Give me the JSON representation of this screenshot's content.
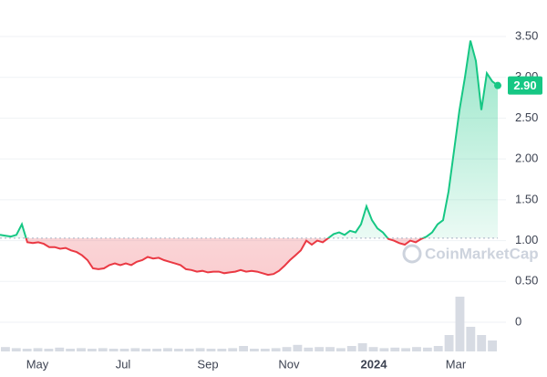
{
  "chart_data": {
    "type": "line",
    "baseline": 1.03,
    "color_up": "#16c784",
    "color_down": "#ea3943",
    "ylim": [
      0,
      3.5
    ],
    "yticks": [
      0,
      {
        "value": 0.5,
        "label": "0.50"
      },
      {
        "value": 1,
        "label": "1.00"
      },
      {
        "value": 1.5,
        "label": "1.50"
      },
      {
        "value": 2,
        "label": "2.00"
      },
      {
        "value": 2.5,
        "label": "2.50"
      },
      {
        "value": 3,
        "label": "3.00"
      },
      {
        "value": 3.5,
        "label": "3.50"
      }
    ],
    "xlim": [
      0,
      91
    ],
    "xticks": [
      {
        "value": 6.83,
        "label": "May"
      },
      {
        "value": 22.5,
        "label": "Jul"
      },
      {
        "value": 38,
        "label": "Sep"
      },
      {
        "value": 52.83,
        "label": "Nov"
      },
      {
        "value": 68.33,
        "label": "2024"
      },
      {
        "value": 83.33,
        "label": "Mar"
      }
    ],
    "series": [
      {
        "values": [
          1.07,
          1.06,
          1.05,
          1.07,
          1.2,
          0.98,
          0.97,
          0.98,
          0.96,
          0.92,
          0.92,
          0.9,
          0.91,
          0.88,
          0.86,
          0.82,
          0.76,
          0.66,
          0.65,
          0.66,
          0.7,
          0.72,
          0.7,
          0.72,
          0.7,
          0.74,
          0.76,
          0.8,
          0.78,
          0.79,
          0.76,
          0.74,
          0.72,
          0.7,
          0.65,
          0.64,
          0.62,
          0.63,
          0.61,
          0.62,
          0.62,
          0.6,
          0.61,
          0.62,
          0.64,
          0.62,
          0.63,
          0.62,
          0.6,
          0.58,
          0.59,
          0.63,
          0.69,
          0.76,
          0.82,
          0.88,
          1.0,
          0.95,
          1.0,
          0.98,
          1.03,
          1.08,
          1.1,
          1.07,
          1.12,
          1.1,
          1.2,
          1.42,
          1.25,
          1.15,
          1.1,
          1.02,
          1.0,
          0.97,
          0.95,
          1.0,
          0.98,
          1.02,
          1.05,
          1.1,
          1.2,
          1.25,
          1.6,
          2.1,
          2.6,
          3.0,
          3.45,
          3.2,
          2.6,
          3.05,
          2.95,
          2.9
        ]
      }
    ],
    "current_price": {
      "value": 2.9,
      "label": "2.90"
    },
    "volume": {
      "color": "#d7dbe3",
      "ylim": [
        0,
        100
      ],
      "values": [
        8,
        6,
        5,
        6,
        5,
        7,
        5,
        6,
        5,
        6,
        5,
        5,
        6,
        5,
        5,
        6,
        5,
        5,
        6,
        5,
        5,
        6,
        10,
        5,
        5,
        6,
        8,
        12,
        7,
        8,
        8,
        6,
        10,
        15,
        8,
        6,
        7,
        6,
        8,
        7,
        10,
        30,
        100,
        45,
        30,
        20
      ]
    },
    "watermark": "CoinMarketCap"
  }
}
